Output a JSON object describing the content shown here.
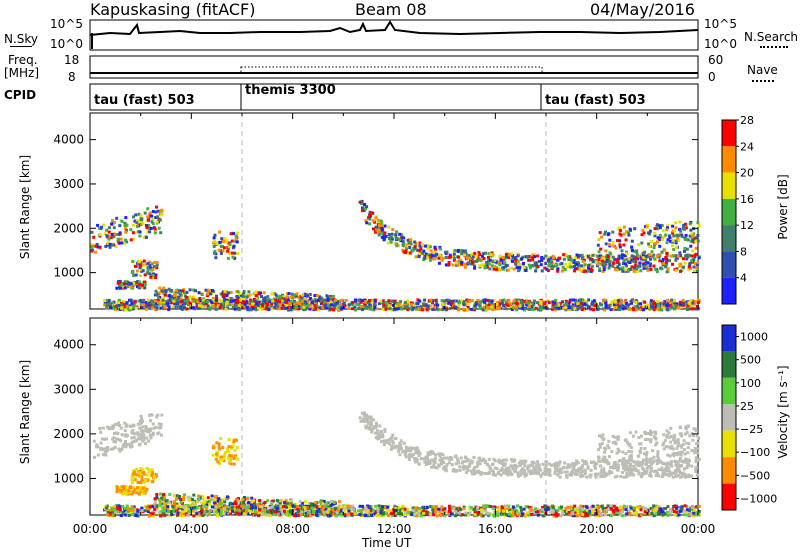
{
  "header": {
    "station": "Kapuskasing (fitACF)",
    "beam": "Beam 08",
    "date": "04/May/2016"
  },
  "nsky_panel": {
    "left_label": "N.Sky",
    "left_ticks": [
      "10^5",
      "10^0"
    ],
    "right_ticks": [
      "10^5",
      "10^0"
    ],
    "right_label": "N.Search"
  },
  "freq_panel": {
    "left_label_1": "Freq.",
    "left_label_2": "[MHz]",
    "left_ticks": [
      "18",
      "8"
    ],
    "right_ticks": [
      "60",
      "0"
    ],
    "right_label": "Nave"
  },
  "cpid_panel": {
    "label": "CPID",
    "segments": [
      {
        "text": "tau (fast) 503",
        "start_hour": 0
      },
      {
        "text": "themis 3300",
        "start_hour": 6
      },
      {
        "text": "tau (fast) 503",
        "start_hour": 18
      }
    ]
  },
  "chart_data": [
    {
      "type": "heatmap",
      "title": "",
      "ylabel": "Slant Range [km]",
      "xlabel": "",
      "xlim": [
        0,
        24
      ],
      "ylim": [
        180,
        4600
      ],
      "y_ticks": [
        1000,
        2000,
        3000,
        4000
      ],
      "colorbar": {
        "label": "Power [dB]",
        "ticks": [
          "4",
          "8",
          "12",
          "16",
          "20",
          "24",
          "28"
        ],
        "colors": [
          "#1f1fff",
          "#3050b0",
          "#40806a",
          "#40b040",
          "#e8e000",
          "#ff8c00",
          "#ff0000"
        ]
      }
    },
    {
      "type": "heatmap",
      "title": "",
      "ylabel": "Slant Range [km]",
      "xlabel": "Time UT",
      "xlim": [
        0,
        24
      ],
      "ylim": [
        180,
        4600
      ],
      "y_ticks": [
        1000,
        2000,
        3000,
        4000
      ],
      "x_ticks": [
        "00:00",
        "04:00",
        "08:00",
        "12:00",
        "16:00",
        "20:00",
        "00:00"
      ],
      "colorbar": {
        "label": "Velocity [m s⁻¹]",
        "ticks": [
          "1000",
          "500",
          "100",
          "25",
          "−25",
          "−100",
          "−500",
          "−1000"
        ],
        "colors": [
          "#1a2ed6",
          "#2a7a3a",
          "#5acb3a",
          "#bdbdb5",
          "#e8e000",
          "#ff8c00",
          "#ff0000"
        ]
      }
    }
  ]
}
